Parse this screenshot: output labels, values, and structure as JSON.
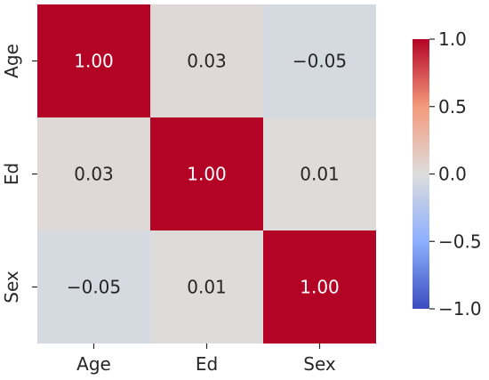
{
  "chart_data": {
    "type": "heatmap",
    "x_categories": [
      "Age",
      "Ed",
      "Sex"
    ],
    "y_categories": [
      "Age",
      "Ed",
      "Sex"
    ],
    "values": [
      [
        1.0,
        0.03,
        -0.05
      ],
      [
        0.03,
        1.0,
        0.01
      ],
      [
        -0.05,
        0.01,
        1.0
      ]
    ],
    "cell_labels": [
      [
        "1.00",
        "0.03",
        "−0.05"
      ],
      [
        "0.03",
        "1.00",
        "0.01"
      ],
      [
        "−0.05",
        "0.01",
        "1.00"
      ]
    ],
    "colorbar": {
      "vmin": -1.0,
      "vmax": 1.0,
      "ticks": [
        1.0,
        0.5,
        0.0,
        -0.5,
        -1.0
      ],
      "tick_labels": [
        "1.0",
        "0.5",
        "0.0",
        "−0.5",
        "−1.0"
      ]
    },
    "colormap": "coolwarm",
    "colors": {
      "low": "#3b4cc0",
      "mid": "#dddddd",
      "high": "#b40426",
      "text_dark": "#262626",
      "text_light": "#ffffff"
    }
  }
}
